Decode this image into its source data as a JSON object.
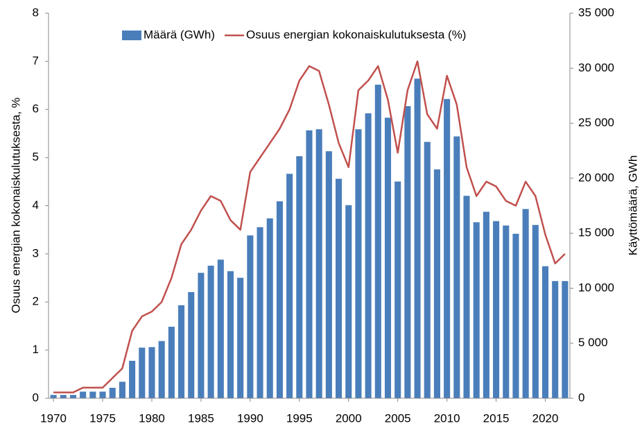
{
  "chart_data": {
    "type": "bar",
    "ylabel": "Osuus energian kokonaiskulutuksesta, %",
    "y2label": "Käyttömäärä, GWh",
    "x": [
      1970,
      1971,
      1972,
      1973,
      1974,
      1975,
      1976,
      1977,
      1978,
      1979,
      1980,
      1981,
      1982,
      1983,
      1984,
      1985,
      1986,
      1987,
      1988,
      1989,
      1990,
      1991,
      1992,
      1993,
      1994,
      1995,
      1996,
      1997,
      1998,
      1999,
      2000,
      2001,
      2002,
      2003,
      2004,
      2005,
      2006,
      2007,
      2008,
      2009,
      2010,
      2011,
      2012,
      2013,
      2014,
      2015,
      2016,
      2017,
      2018,
      2019,
      2020,
      2021,
      2022
    ],
    "series": [
      {
        "name": "Määrä (GWh)",
        "type": "bar",
        "axis": "y2",
        "color": "#4a7ebb",
        "values": [
          300,
          300,
          300,
          600,
          600,
          600,
          950,
          1500,
          3400,
          4600,
          4650,
          5200,
          6500,
          8450,
          9650,
          11400,
          12050,
          12600,
          11550,
          10950,
          14800,
          15550,
          16350,
          17900,
          20400,
          22000,
          24350,
          24450,
          22450,
          19950,
          17550,
          24450,
          25900,
          28500,
          25500,
          19700,
          26550,
          29050,
          23300,
          20800,
          27200,
          23800,
          18400,
          16000,
          16950,
          16100,
          15700,
          14950,
          17200,
          15750,
          12000,
          10650,
          10650
        ]
      },
      {
        "name": "Osuus energian kokonaiskulutuksesta (%)",
        "type": "line",
        "axis": "y",
        "color": "#c0504d",
        "values": [
          0.12,
          0.12,
          0.12,
          0.22,
          0.22,
          0.22,
          0.42,
          0.62,
          1.4,
          1.7,
          1.8,
          2.0,
          2.5,
          3.2,
          3.5,
          3.9,
          4.2,
          4.1,
          3.7,
          3.5,
          4.7,
          5.0,
          5.3,
          5.6,
          6.0,
          6.6,
          6.9,
          6.8,
          6.1,
          5.3,
          4.8,
          6.4,
          6.6,
          6.9,
          6.2,
          5.1,
          6.4,
          7.0,
          5.9,
          5.6,
          6.7,
          6.1,
          4.8,
          4.2,
          4.5,
          4.4,
          4.1,
          4.0,
          4.5,
          4.2,
          3.4,
          2.8,
          3.0
        ]
      }
    ],
    "xlim": [
      1969.5,
      2022.5
    ],
    "xticks": [
      1970,
      1975,
      1980,
      1985,
      1990,
      1995,
      2000,
      2005,
      2010,
      2015,
      2020
    ],
    "ylim": [
      0,
      8
    ],
    "yticks": [
      0,
      1,
      2,
      3,
      4,
      5,
      6,
      7,
      8
    ],
    "y2lim": [
      0,
      35000
    ],
    "y2ticks": [
      0,
      {
        "value": 5000,
        "label": "5 000"
      },
      {
        "value": 10000,
        "label": "10 000"
      },
      {
        "value": 15000,
        "label": "15 000"
      },
      {
        "value": 20000,
        "label": "20 000"
      },
      {
        "value": 25000,
        "label": "25 000"
      },
      {
        "value": 30000,
        "label": "30 000"
      },
      {
        "value": 35000,
        "label": "35 000"
      }
    ],
    "grid": false,
    "legend": "top"
  }
}
